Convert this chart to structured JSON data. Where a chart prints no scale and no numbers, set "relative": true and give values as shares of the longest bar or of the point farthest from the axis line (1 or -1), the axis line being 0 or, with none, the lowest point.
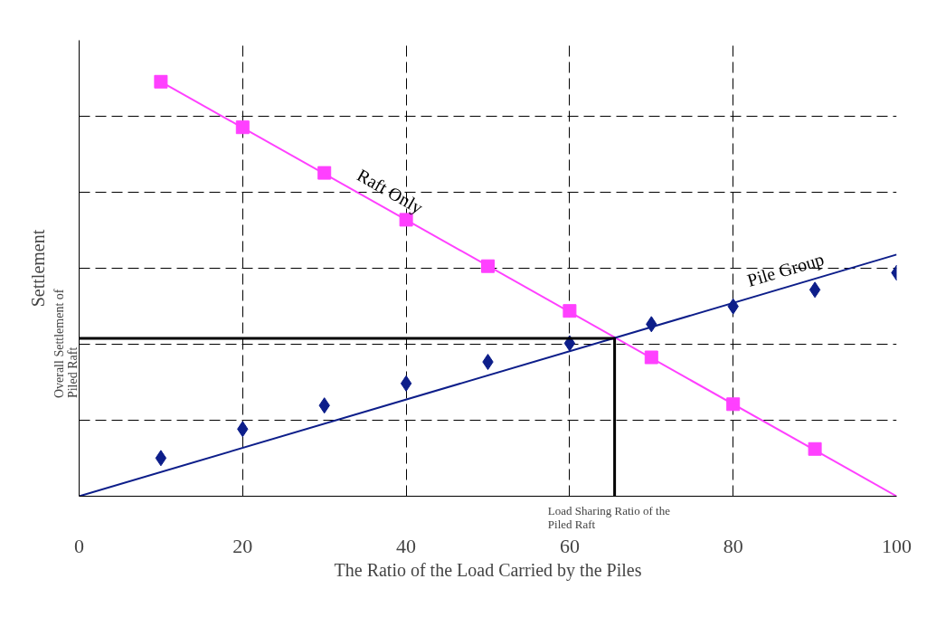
{
  "chart_data": {
    "type": "line",
    "relative": true,
    "xlabel": "The Ratio of the Load Carried by the Piles",
    "ylabel": "Settlement",
    "xlim": [
      0,
      100
    ],
    "xticks": [
      0,
      20,
      40,
      60,
      80,
      100
    ],
    "grid": true,
    "legend": false,
    "series": [
      {
        "type": "scatter",
        "marker": "square",
        "color": "#ff40ff",
        "x": [
          10,
          20,
          30,
          40,
          50,
          60,
          70,
          80,
          90
        ],
        "values": [
          1,
          0.89,
          0.78,
          0.667,
          0.555,
          0.447,
          0.335,
          0.222,
          0.114
        ]
      },
      {
        "type": "line",
        "name": "Raft Only",
        "color": "#ff40ff",
        "x": [
          10,
          100
        ],
        "values": [
          1,
          0
        ]
      },
      {
        "type": "scatter",
        "marker": "diamond",
        "color": "#0d1e8a",
        "x": [
          10,
          20,
          30,
          40,
          50,
          60,
          70,
          80,
          90,
          100
        ],
        "values": [
          0.092,
          0.162,
          0.219,
          0.272,
          0.324,
          0.369,
          0.415,
          0.458,
          0.498,
          0.539
        ]
      },
      {
        "type": "line",
        "name": "Pile Group",
        "color": "#0d1e8a",
        "x": [
          0,
          100
        ],
        "values": [
          0,
          0.583
        ]
      },
      {
        "type": "line",
        "color": "#000000",
        "x": [
          0,
          65.5,
          65.5
        ],
        "values": [
          0.381,
          0.381,
          0
        ]
      }
    ],
    "annotations": [
      {
        "text": "Overall Settlement of\nPiled Raft",
        "x": 0,
        "y": 0.381
      },
      {
        "text": "Load Sharing Ratio of the\nPiled Raft",
        "x": 65.5,
        "y": 0
      }
    ]
  }
}
